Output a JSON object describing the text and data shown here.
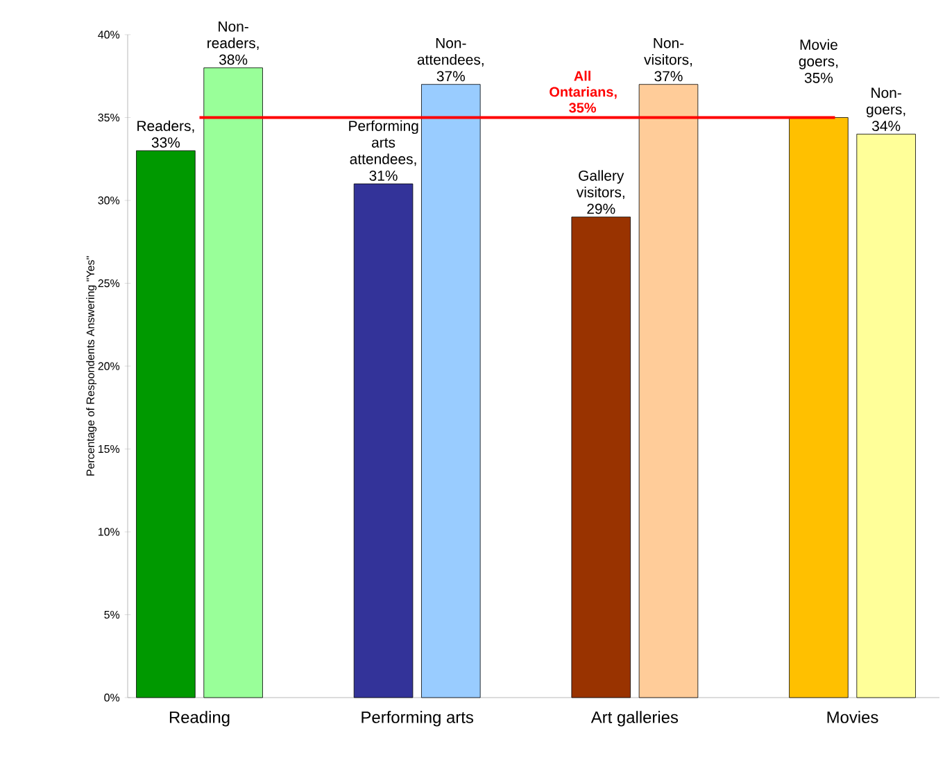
{
  "chart_data": {
    "type": "bar",
    "ylabel": "Percentage of Respondents Answering \"Yes\"",
    "categories": [
      "Reading",
      "Performing arts",
      "Art galleries",
      "Movies"
    ],
    "series": [
      {
        "values": [
          33,
          31,
          29,
          35
        ],
        "colors": [
          "#009900",
          "#333399",
          "#993300",
          "#ffc000"
        ],
        "value_labels": [
          "Readers, 33%",
          "Performing arts attendees, 31%",
          "Gallery visitors, 29%",
          "Movie goers, 35%"
        ]
      },
      {
        "values": [
          38,
          37,
          37,
          34
        ],
        "colors": [
          "#99ff99",
          "#99ccff",
          "#ffcc99",
          "#ffff99"
        ],
        "value_labels": [
          "Non-readers, 38%",
          "Non-attendees, 37%",
          "Non-visitors, 37%",
          "Non-goers, 34%"
        ]
      }
    ],
    "ylim": [
      0,
      40
    ],
    "yticks": [
      {
        "value": 0,
        "label": "0%"
      },
      {
        "value": 5,
        "label": "5%"
      },
      {
        "value": 10,
        "label": "10%"
      },
      {
        "value": 15,
        "label": "15%"
      },
      {
        "value": 20,
        "label": "20%"
      },
      {
        "value": 25,
        "label": "25%"
      },
      {
        "value": 30,
        "label": "30%"
      },
      {
        "value": 35,
        "label": "35%"
      },
      {
        "value": 40,
        "label": "40%"
      }
    ],
    "ref_lines": [
      {
        "axis": "y",
        "value": 35,
        "label": "All Ontarians, 35%",
        "color": "#ff0000"
      }
    ]
  }
}
